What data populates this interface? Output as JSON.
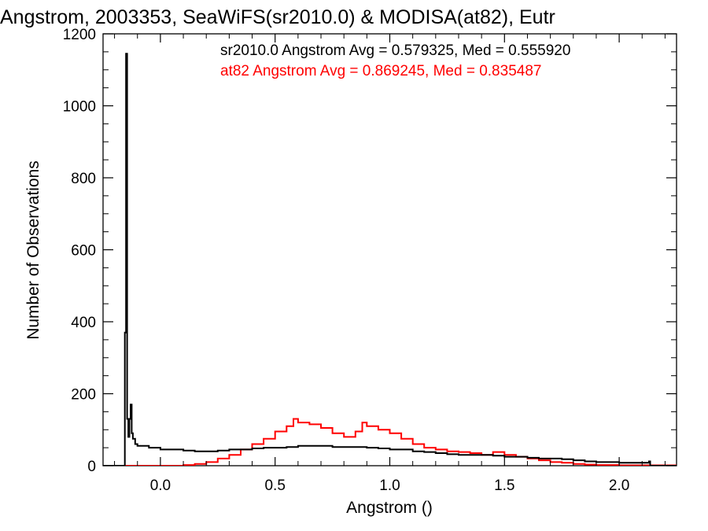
{
  "chart_data": {
    "type": "histogram",
    "title": "Angstrom, 2003353, SeaWiFS(sr2010.0) & MODISA(at82), Eutr",
    "xlabel": "Angstrom ()",
    "ylabel": "Number of Observations",
    "xlim": [
      -0.25,
      2.25
    ],
    "ylim": [
      0,
      1200
    ],
    "x_ticks": [
      0.0,
      0.5,
      1.0,
      1.5,
      2.0
    ],
    "x_tick_labels": [
      "0.0",
      "0.5",
      "1.0",
      "1.5",
      "2.0"
    ],
    "y_ticks": [
      0,
      200,
      400,
      600,
      800,
      1000,
      1200
    ],
    "y_tick_labels": [
      "0",
      "200",
      "400",
      "600",
      "800",
      "1000",
      "1200"
    ],
    "grid": false,
    "annotations": [
      {
        "text": "sr2010.0 Angstrom Avg = 0.579325, Med = 0.555920",
        "color": "#000000"
      },
      {
        "text": "at82 Angstrom Avg = 0.869245, Med = 0.835487",
        "color": "#ff0000"
      }
    ],
    "series": [
      {
        "color": "#000000",
        "points": [
          [
            -0.25,
            0
          ],
          [
            -0.16,
            0
          ],
          [
            -0.155,
            370
          ],
          [
            -0.15,
            1145
          ],
          [
            -0.145,
            130
          ],
          [
            -0.14,
            80
          ],
          [
            -0.135,
            130
          ],
          [
            -0.13,
            170
          ],
          [
            -0.125,
            90
          ],
          [
            -0.12,
            75
          ],
          [
            -0.11,
            60
          ],
          [
            -0.1,
            55
          ],
          [
            -0.05,
            50
          ],
          [
            0.0,
            45
          ],
          [
            0.05,
            45
          ],
          [
            0.1,
            42
          ],
          [
            0.15,
            40
          ],
          [
            0.2,
            40
          ],
          [
            0.25,
            42
          ],
          [
            0.3,
            45
          ],
          [
            0.35,
            45
          ],
          [
            0.4,
            48
          ],
          [
            0.45,
            50
          ],
          [
            0.5,
            50
          ],
          [
            0.55,
            52
          ],
          [
            0.6,
            55
          ],
          [
            0.65,
            55
          ],
          [
            0.7,
            55
          ],
          [
            0.75,
            52
          ],
          [
            0.8,
            52
          ],
          [
            0.85,
            52
          ],
          [
            0.9,
            50
          ],
          [
            0.95,
            48
          ],
          [
            1.0,
            45
          ],
          [
            1.05,
            45
          ],
          [
            1.1,
            40
          ],
          [
            1.15,
            38
          ],
          [
            1.2,
            35
          ],
          [
            1.25,
            32
          ],
          [
            1.3,
            30
          ],
          [
            1.35,
            30
          ],
          [
            1.4,
            30
          ],
          [
            1.45,
            28
          ],
          [
            1.5,
            25
          ],
          [
            1.55,
            25
          ],
          [
            1.6,
            22
          ],
          [
            1.65,
            20
          ],
          [
            1.7,
            20
          ],
          [
            1.75,
            18
          ],
          [
            1.8,
            15
          ],
          [
            1.85,
            12
          ],
          [
            1.9,
            10
          ],
          [
            1.95,
            10
          ],
          [
            2.0,
            8
          ],
          [
            2.05,
            8
          ],
          [
            2.1,
            8
          ],
          [
            2.13,
            12
          ],
          [
            2.135,
            0
          ],
          [
            2.25,
            0
          ]
        ]
      },
      {
        "color": "#ff0000",
        "points": [
          [
            -0.25,
            0
          ],
          [
            0.05,
            0
          ],
          [
            0.1,
            2
          ],
          [
            0.15,
            5
          ],
          [
            0.2,
            10
          ],
          [
            0.25,
            20
          ],
          [
            0.3,
            30
          ],
          [
            0.35,
            45
          ],
          [
            0.4,
            60
          ],
          [
            0.45,
            75
          ],
          [
            0.5,
            95
          ],
          [
            0.55,
            110
          ],
          [
            0.58,
            130
          ],
          [
            0.6,
            120
          ],
          [
            0.65,
            115
          ],
          [
            0.7,
            105
          ],
          [
            0.75,
            90
          ],
          [
            0.8,
            80
          ],
          [
            0.85,
            95
          ],
          [
            0.88,
            120
          ],
          [
            0.9,
            110
          ],
          [
            0.95,
            100
          ],
          [
            1.0,
            90
          ],
          [
            1.05,
            75
          ],
          [
            1.1,
            60
          ],
          [
            1.15,
            50
          ],
          [
            1.2,
            45
          ],
          [
            1.25,
            40
          ],
          [
            1.3,
            38
          ],
          [
            1.35,
            35
          ],
          [
            1.4,
            30
          ],
          [
            1.45,
            38
          ],
          [
            1.5,
            30
          ],
          [
            1.55,
            25
          ],
          [
            1.6,
            20
          ],
          [
            1.65,
            15
          ],
          [
            1.7,
            10
          ],
          [
            1.75,
            8
          ],
          [
            1.8,
            5
          ],
          [
            1.85,
            3
          ],
          [
            1.9,
            2
          ],
          [
            2.0,
            1
          ],
          [
            2.25,
            0
          ]
        ]
      }
    ]
  }
}
